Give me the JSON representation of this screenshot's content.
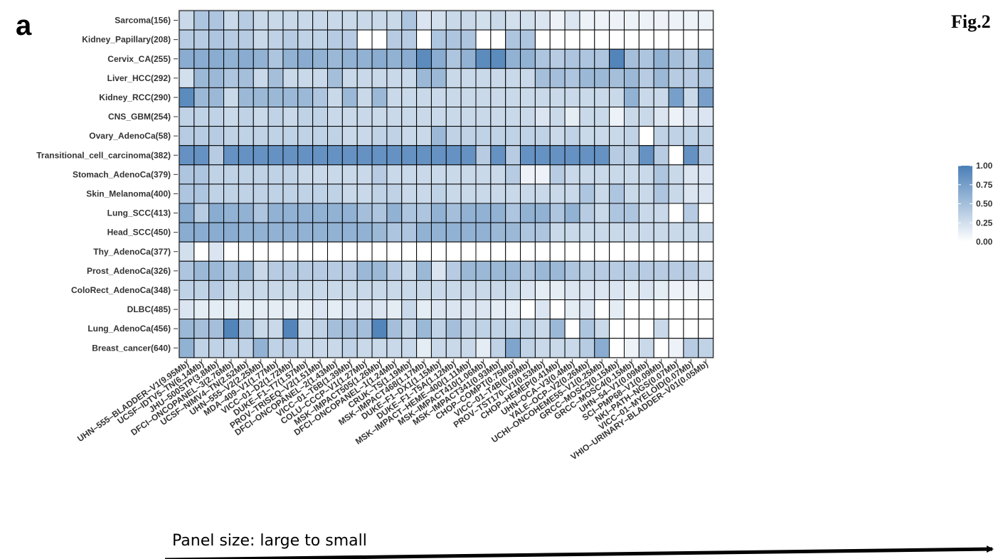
{
  "panel_letter": "a",
  "figure_label": "Fig.2",
  "arrow_caption": "Panel size: large to small",
  "colors": {
    "low": "#ffffff",
    "high": "#4a7fb7",
    "grid": "#000000",
    "label": "#333333"
  },
  "chart_data": {
    "type": "heatmap",
    "title": "",
    "xlabel": "",
    "ylabel": "",
    "value_range": [
      0,
      1
    ],
    "legend": {
      "position": "right",
      "ticks": [
        1.0,
        0.75,
        0.5,
        0.25,
        0.0
      ],
      "tick_labels": [
        "1.00",
        "0.75",
        "0.50",
        "0.25",
        "0.00"
      ]
    },
    "rows": [
      "Sarcoma(156)",
      "Kidney_Papillary(208)",
      "Cervix_CA(255)",
      "Liver_HCC(292)",
      "Kidney_RCC(290)",
      "CNS_GBM(254)",
      "Ovary_AdenoCa(58)",
      "Transitional_cell_carcinoma(382)",
      "Stomach_AdenoCa(379)",
      "Skin_Melanoma(400)",
      "Lung_SCC(413)",
      "Head_SCC(450)",
      "Thy_AdenoCa(377)",
      "Prost_AdenoCa(326)",
      "ColoRect_AdenoCa(348)",
      "DLBC(485)",
      "Lung_AdenoCa(456)",
      "Breast_cancer(640)"
    ],
    "columns": [
      "UHN–555–BLADDER–V1(9.95Mb)",
      "UCSF–IDTV5–TN(6.14Mb)",
      "JHU–500STP(3.8Mb)",
      "DFCI–ONCOPANEL–3(2.76Mb)",
      "UCSF–NIMV4–TN(2.52Mb)",
      "UHN–555–V2(2.25Mb)",
      "MDA–409–V1(1.77Mb)",
      "VICC–01–D2(1.72Mb)",
      "DUKE–F1–T7(1.57Mb)",
      "PROV–TRISEQ–V2(1.51Mb)",
      "DFCI–ONCOPANEL–2(1.43Mb)",
      "VICC–01–T6B(1.39Mb)",
      "COLU–CCCP–V1(1.27Mb)",
      "MSK–IMPACT505(1.26Mb)",
      "DFCI–ONCOPANEL–1(1.24Mb)",
      "CRUK–TS(1.19Mb)",
      "MSK–IMPACT468(1.17Mb)",
      "DUKE–F1–DX1(1.15Mb)",
      "DUKE–F1–T5A(1.12Mb)",
      "MSK–IMPACT–HEME–400(1.11Mb)",
      "MSK–IMPACT410(1.06Mb)",
      "MSK–IMPACT341(0.93Mb)",
      "CHOP–COMPT(0.75Mb)",
      "VICC–01–T4B(0.69Mb)",
      "PROV–TST170–V1(0.53Mb)",
      "CHOP–HEMEP(0.41Mb)",
      "UHN–OCA–V3(0.4Mb)",
      "YALE–OCP–V2(0.26Mb)",
      "UCHI–ONCOHEME55–V1(0.25Mb)",
      "GRCC–MOSC3(0.15Mb)",
      "GRCC–MOSC4(0.15Mb)",
      "UHN–54–V1(0.09Mb)",
      "SCI–PMP68–V1(0.09Mb)",
      "NKI–PATH–NGS(0.07Mb)",
      "VICC–01–MYELOID(0.07Mb)",
      "VHIO–URINARY–BLADDER–V01(0.05Mb)"
    ],
    "values": [
      [
        0.3,
        0.45,
        0.45,
        0.3,
        0.4,
        0.3,
        0.3,
        0.3,
        0.3,
        0.3,
        0.3,
        0.3,
        0.3,
        0.3,
        0.3,
        0.45,
        0.2,
        0.25,
        0.3,
        0.3,
        0.25,
        0.3,
        0.25,
        0.25,
        0.2,
        0.1,
        0.2,
        0.1,
        0.1,
        0.1,
        0.1,
        0.1,
        0.1,
        0.1,
        0.1,
        0.1
      ],
      [
        0.4,
        0.4,
        0.45,
        0.4,
        0.4,
        0.3,
        0.35,
        0.4,
        0.35,
        0.35,
        0.4,
        0.4,
        0.0,
        0.0,
        0.4,
        0.4,
        0.0,
        0.45,
        0.45,
        0.45,
        0.0,
        0.0,
        0.45,
        0.45,
        0.0,
        0.0,
        0.0,
        0.0,
        0.0,
        0.0,
        0.0,
        0.0,
        0.0,
        0.0,
        0.0,
        0.0
      ],
      [
        0.65,
        0.65,
        0.65,
        0.6,
        0.65,
        0.6,
        0.45,
        0.6,
        0.65,
        0.6,
        0.55,
        0.6,
        0.6,
        0.65,
        0.6,
        0.65,
        0.9,
        0.65,
        0.45,
        0.6,
        0.9,
        0.9,
        0.6,
        0.6,
        0.45,
        0.4,
        0.45,
        0.45,
        0.45,
        0.95,
        0.5,
        0.45,
        0.6,
        0.5,
        0.4,
        0.6
      ],
      [
        0.25,
        0.55,
        0.55,
        0.45,
        0.5,
        0.3,
        0.5,
        0.3,
        0.3,
        0.3,
        0.5,
        0.3,
        0.3,
        0.3,
        0.3,
        0.3,
        0.55,
        0.55,
        0.3,
        0.3,
        0.3,
        0.3,
        0.3,
        0.3,
        0.5,
        0.5,
        0.45,
        0.55,
        0.55,
        0.5,
        0.55,
        0.4,
        0.55,
        0.4,
        0.4,
        0.45
      ],
      [
        0.9,
        0.55,
        0.55,
        0.3,
        0.55,
        0.55,
        0.55,
        0.55,
        0.55,
        0.45,
        0.3,
        0.55,
        0.3,
        0.55,
        0.3,
        0.3,
        0.3,
        0.3,
        0.3,
        0.3,
        0.3,
        0.3,
        0.3,
        0.3,
        0.3,
        0.3,
        0.3,
        0.3,
        0.3,
        0.3,
        0.6,
        0.3,
        0.3,
        0.75,
        0.3,
        0.75
      ],
      [
        0.35,
        0.35,
        0.35,
        0.3,
        0.35,
        0.3,
        0.35,
        0.3,
        0.35,
        0.35,
        0.3,
        0.3,
        0.3,
        0.3,
        0.3,
        0.3,
        0.3,
        0.3,
        0.3,
        0.3,
        0.3,
        0.3,
        0.3,
        0.3,
        0.2,
        0.3,
        0.15,
        0.3,
        0.3,
        0.1,
        0.3,
        0.3,
        0.2,
        0.1,
        0.2,
        0.2
      ],
      [
        0.4,
        0.4,
        0.4,
        0.35,
        0.35,
        0.35,
        0.35,
        0.35,
        0.35,
        0.35,
        0.35,
        0.3,
        0.3,
        0.35,
        0.35,
        0.3,
        0.3,
        0.55,
        0.35,
        0.35,
        0.35,
        0.35,
        0.35,
        0.35,
        0.35,
        0.3,
        0.35,
        0.3,
        0.3,
        0.3,
        0.35,
        0.0,
        0.35,
        0.35,
        0.35,
        0.35
      ],
      [
        0.85,
        0.85,
        0.4,
        0.85,
        0.85,
        0.85,
        0.85,
        0.85,
        0.85,
        0.85,
        0.85,
        0.85,
        0.85,
        0.85,
        0.85,
        0.85,
        0.85,
        0.85,
        0.85,
        0.85,
        0.4,
        0.85,
        0.4,
        0.85,
        0.85,
        0.85,
        0.85,
        0.85,
        0.85,
        0.4,
        0.4,
        0.85,
        0.4,
        0.0,
        0.85,
        0.4
      ],
      [
        0.45,
        0.45,
        0.35,
        0.35,
        0.35,
        0.35,
        0.35,
        0.35,
        0.3,
        0.3,
        0.3,
        0.3,
        0.3,
        0.4,
        0.3,
        0.3,
        0.3,
        0.3,
        0.3,
        0.3,
        0.3,
        0.3,
        0.4,
        0.1,
        0.1,
        0.4,
        0.3,
        0.3,
        0.3,
        0.3,
        0.3,
        0.3,
        0.45,
        0.3,
        0.2,
        0.2
      ],
      [
        0.45,
        0.45,
        0.35,
        0.35,
        0.35,
        0.35,
        0.35,
        0.35,
        0.35,
        0.35,
        0.35,
        0.3,
        0.3,
        0.35,
        0.35,
        0.3,
        0.3,
        0.35,
        0.3,
        0.3,
        0.3,
        0.3,
        0.3,
        0.3,
        0.3,
        0.3,
        0.3,
        0.45,
        0.3,
        0.45,
        0.3,
        0.3,
        0.45,
        0.3,
        0.2,
        0.2
      ],
      [
        0.65,
        0.4,
        0.65,
        0.6,
        0.6,
        0.45,
        0.6,
        0.6,
        0.6,
        0.6,
        0.6,
        0.6,
        0.5,
        0.45,
        0.6,
        0.45,
        0.45,
        0.6,
        0.5,
        0.6,
        0.6,
        0.6,
        0.45,
        0.6,
        0.6,
        0.45,
        0.6,
        0.4,
        0.3,
        0.45,
        0.45,
        0.3,
        0.3,
        0.0,
        0.4,
        0.0
      ],
      [
        0.65,
        0.65,
        0.65,
        0.65,
        0.6,
        0.6,
        0.6,
        0.6,
        0.6,
        0.6,
        0.6,
        0.6,
        0.6,
        0.55,
        0.45,
        0.45,
        0.6,
        0.6,
        0.6,
        0.6,
        0.6,
        0.55,
        0.55,
        0.45,
        0.45,
        0.3,
        0.3,
        0.3,
        0.3,
        0.3,
        0.3,
        0.3,
        0.3,
        0.3,
        0.3,
        0.3
      ],
      [
        0.25,
        0.0,
        0.2,
        0.0,
        0.0,
        0.0,
        0.0,
        0.0,
        0.0,
        0.0,
        0.0,
        0.0,
        0.0,
        0.0,
        0.0,
        0.0,
        0.0,
        0.0,
        0.0,
        0.0,
        0.0,
        0.0,
        0.0,
        0.0,
        0.0,
        0.0,
        0.0,
        0.0,
        0.0,
        0.0,
        0.0,
        0.0,
        0.0,
        0.0,
        0.0,
        0.0
      ],
      [
        0.45,
        0.55,
        0.55,
        0.45,
        0.55,
        0.3,
        0.4,
        0.4,
        0.4,
        0.4,
        0.4,
        0.4,
        0.55,
        0.55,
        0.4,
        0.3,
        0.55,
        0.2,
        0.4,
        0.55,
        0.55,
        0.55,
        0.55,
        0.45,
        0.55,
        0.55,
        0.45,
        0.4,
        0.4,
        0.4,
        0.4,
        0.4,
        0.4,
        0.4,
        0.4,
        0.3
      ],
      [
        0.35,
        0.35,
        0.4,
        0.3,
        0.3,
        0.3,
        0.3,
        0.3,
        0.3,
        0.3,
        0.3,
        0.3,
        0.3,
        0.3,
        0.3,
        0.3,
        0.3,
        0.3,
        0.3,
        0.3,
        0.3,
        0.3,
        0.3,
        0.2,
        0.15,
        0.15,
        0.2,
        0.2,
        0.2,
        0.2,
        0.15,
        0.2,
        0.15,
        0.1,
        0.1,
        0.1
      ],
      [
        0.2,
        0.15,
        0.15,
        0.15,
        0.15,
        0.15,
        0.15,
        0.15,
        0.15,
        0.2,
        0.15,
        0.2,
        0.2,
        0.2,
        0.15,
        0.3,
        0.15,
        0.2,
        0.2,
        0.2,
        0.2,
        0.15,
        0.15,
        0.0,
        0.2,
        0.0,
        0.15,
        0.2,
        0.0,
        0.15,
        0.0,
        0.0,
        0.0,
        0.0,
        0.0,
        0.0
      ],
      [
        0.55,
        0.5,
        0.5,
        0.95,
        0.5,
        0.3,
        0.3,
        0.95,
        0.3,
        0.35,
        0.5,
        0.5,
        0.5,
        0.95,
        0.5,
        0.35,
        0.55,
        0.35,
        0.5,
        0.35,
        0.35,
        0.35,
        0.35,
        0.35,
        0.3,
        0.55,
        0.0,
        0.45,
        0.3,
        0.0,
        0.0,
        0.0,
        0.3,
        0.0,
        0.0,
        0.0
      ],
      [
        0.6,
        0.35,
        0.35,
        0.35,
        0.35,
        0.6,
        0.35,
        0.4,
        0.3,
        0.3,
        0.3,
        0.35,
        0.3,
        0.3,
        0.3,
        0.3,
        0.15,
        0.3,
        0.3,
        0.3,
        0.15,
        0.35,
        0.7,
        0.35,
        0.3,
        0.3,
        0.3,
        0.4,
        0.65,
        0.0,
        0.1,
        0.3,
        0.0,
        0.1,
        0.4,
        0.35
      ]
    ]
  }
}
